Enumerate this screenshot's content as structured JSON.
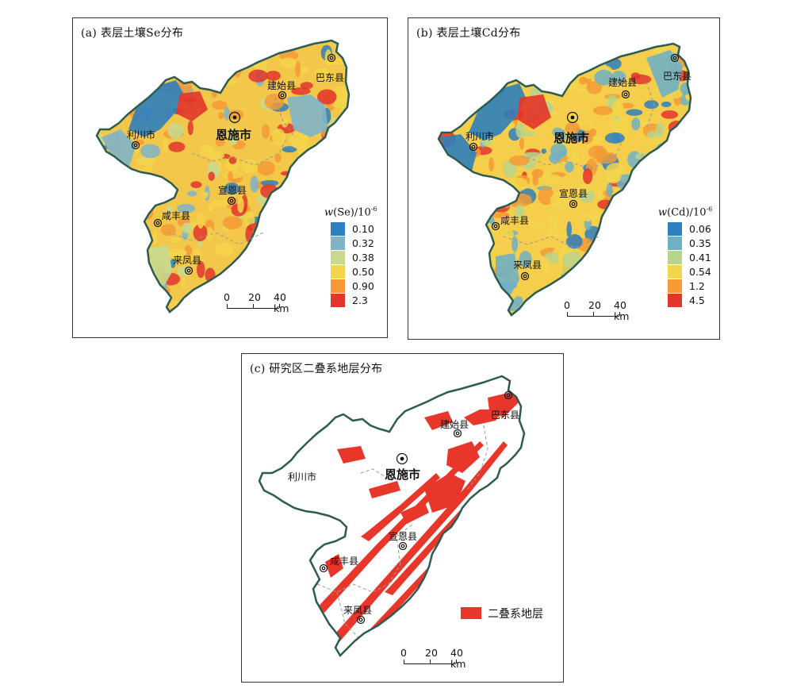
{
  "panels": {
    "a": {
      "title": "(a) 表层土壤Se分布",
      "legend_title_var": "w",
      "legend_title_rest": "(Se)/10",
      "legend_title_exp": "-6",
      "legend": [
        {
          "label": "0.10",
          "color": "#2e7fbd"
        },
        {
          "label": "0.32",
          "color": "#7fb4c8"
        },
        {
          "label": "0.38",
          "color": "#c6d98f"
        },
        {
          "label": "0.50",
          "color": "#f3d54a"
        },
        {
          "label": "0.90",
          "color": "#f59a36"
        },
        {
          "label": "2.3",
          "color": "#e2352b"
        }
      ]
    },
    "b": {
      "title": "(b) 表层土壤Cd分布",
      "legend_title_var": "w",
      "legend_title_rest": "(Cd)/10",
      "legend_title_exp": "-6",
      "legend": [
        {
          "label": "0.06",
          "color": "#2e7fbd"
        },
        {
          "label": "0.35",
          "color": "#6fb0c4"
        },
        {
          "label": "0.41",
          "color": "#b8d48c"
        },
        {
          "label": "0.54",
          "color": "#f3d54a"
        },
        {
          "label": "1.2",
          "color": "#f59a36"
        },
        {
          "label": "4.5",
          "color": "#e2352b"
        }
      ]
    },
    "c": {
      "title": "(c) 研究区二叠系地层分布",
      "legend_label": "二叠系地层",
      "legend_color": "#e8372a"
    }
  },
  "scale": {
    "ticks": [
      "0",
      "20",
      "40 km"
    ]
  },
  "cities": {
    "enshi": "恩施市",
    "lichuan": "利川市",
    "jianshi": "建始县",
    "badong": "巴东县",
    "xuanen": "宣恩县",
    "xianfeng": "咸丰县",
    "laifeng": "来凤县"
  },
  "colors": {
    "boundary": "#2d5b52",
    "county_line": "#9a9a9a",
    "strata": "#e8372a"
  }
}
